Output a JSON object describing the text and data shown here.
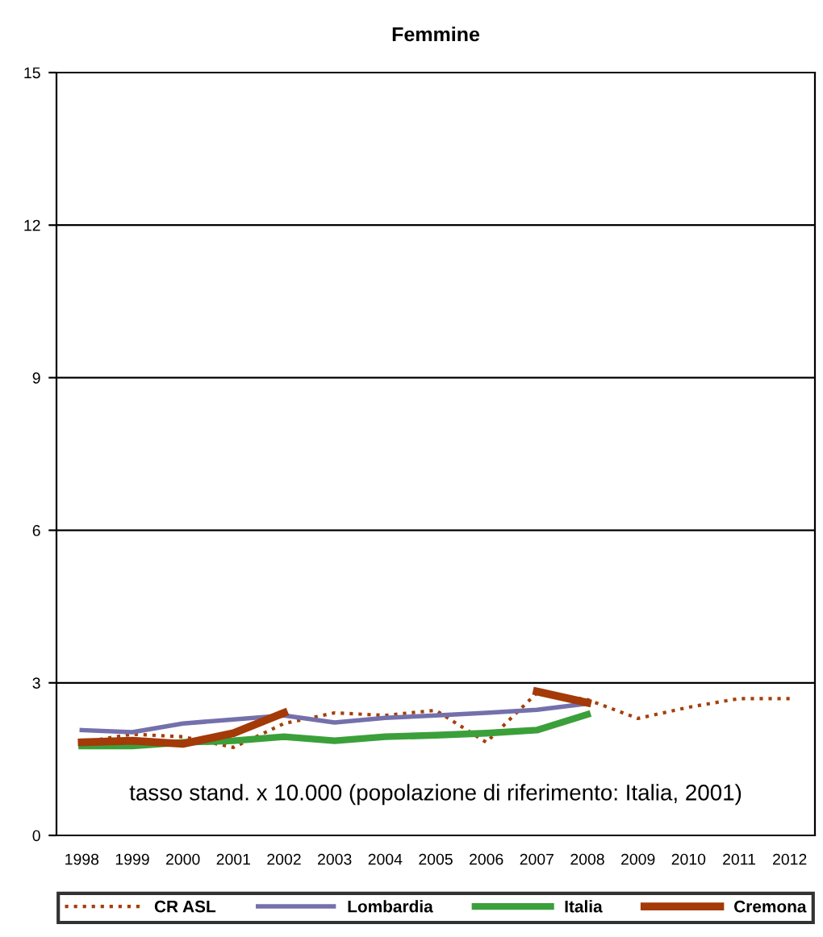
{
  "chart_data": {
    "type": "line",
    "title": "Femmine",
    "categories": [
      "1998",
      "1999",
      "2000",
      "2001",
      "2002",
      "2003",
      "2004",
      "2005",
      "2006",
      "2007",
      "2008",
      "2009",
      "2010",
      "2011",
      "2012"
    ],
    "series": [
      {
        "name": "CR ASL",
        "color": "#a3400c",
        "line_style": "dotted",
        "values": [
          1.83,
          1.99,
          1.94,
          1.73,
          2.2,
          2.41,
          2.36,
          2.46,
          1.83,
          2.8,
          2.67,
          2.3,
          2.52,
          2.69,
          2.69
        ]
      },
      {
        "name": "Lombardia",
        "color": "#7470ac",
        "line_style": "solid",
        "values": [
          2.07,
          2.03,
          2.2,
          2.28,
          2.36,
          2.22,
          2.31,
          2.36,
          2.41,
          2.47,
          2.59,
          null,
          null,
          null,
          null
        ]
      },
      {
        "name": "Italia",
        "color": "#3ba03a",
        "line_style": "solid",
        "values": [
          1.76,
          1.76,
          1.83,
          1.86,
          1.94,
          1.86,
          1.94,
          1.97,
          2.01,
          2.07,
          2.38,
          null,
          null,
          null,
          null
        ]
      },
      {
        "name": "Cremona",
        "color": "#a33a08",
        "line_style": "solid",
        "values": [
          1.83,
          1.86,
          1.8,
          2.01,
          2.41,
          null,
          null,
          null,
          null,
          2.83,
          2.61,
          null,
          null,
          null,
          null
        ]
      }
    ],
    "ylim": [
      0,
      15
    ],
    "yticks": [
      0,
      3,
      6,
      9,
      12,
      15
    ],
    "grid": "y",
    "legend": "bottom",
    "marker": "none",
    "annotations": [
      {
        "text": "tasso stand. x 10.000 (popolazione di riferimento: Italia, 2001)"
      }
    ]
  }
}
